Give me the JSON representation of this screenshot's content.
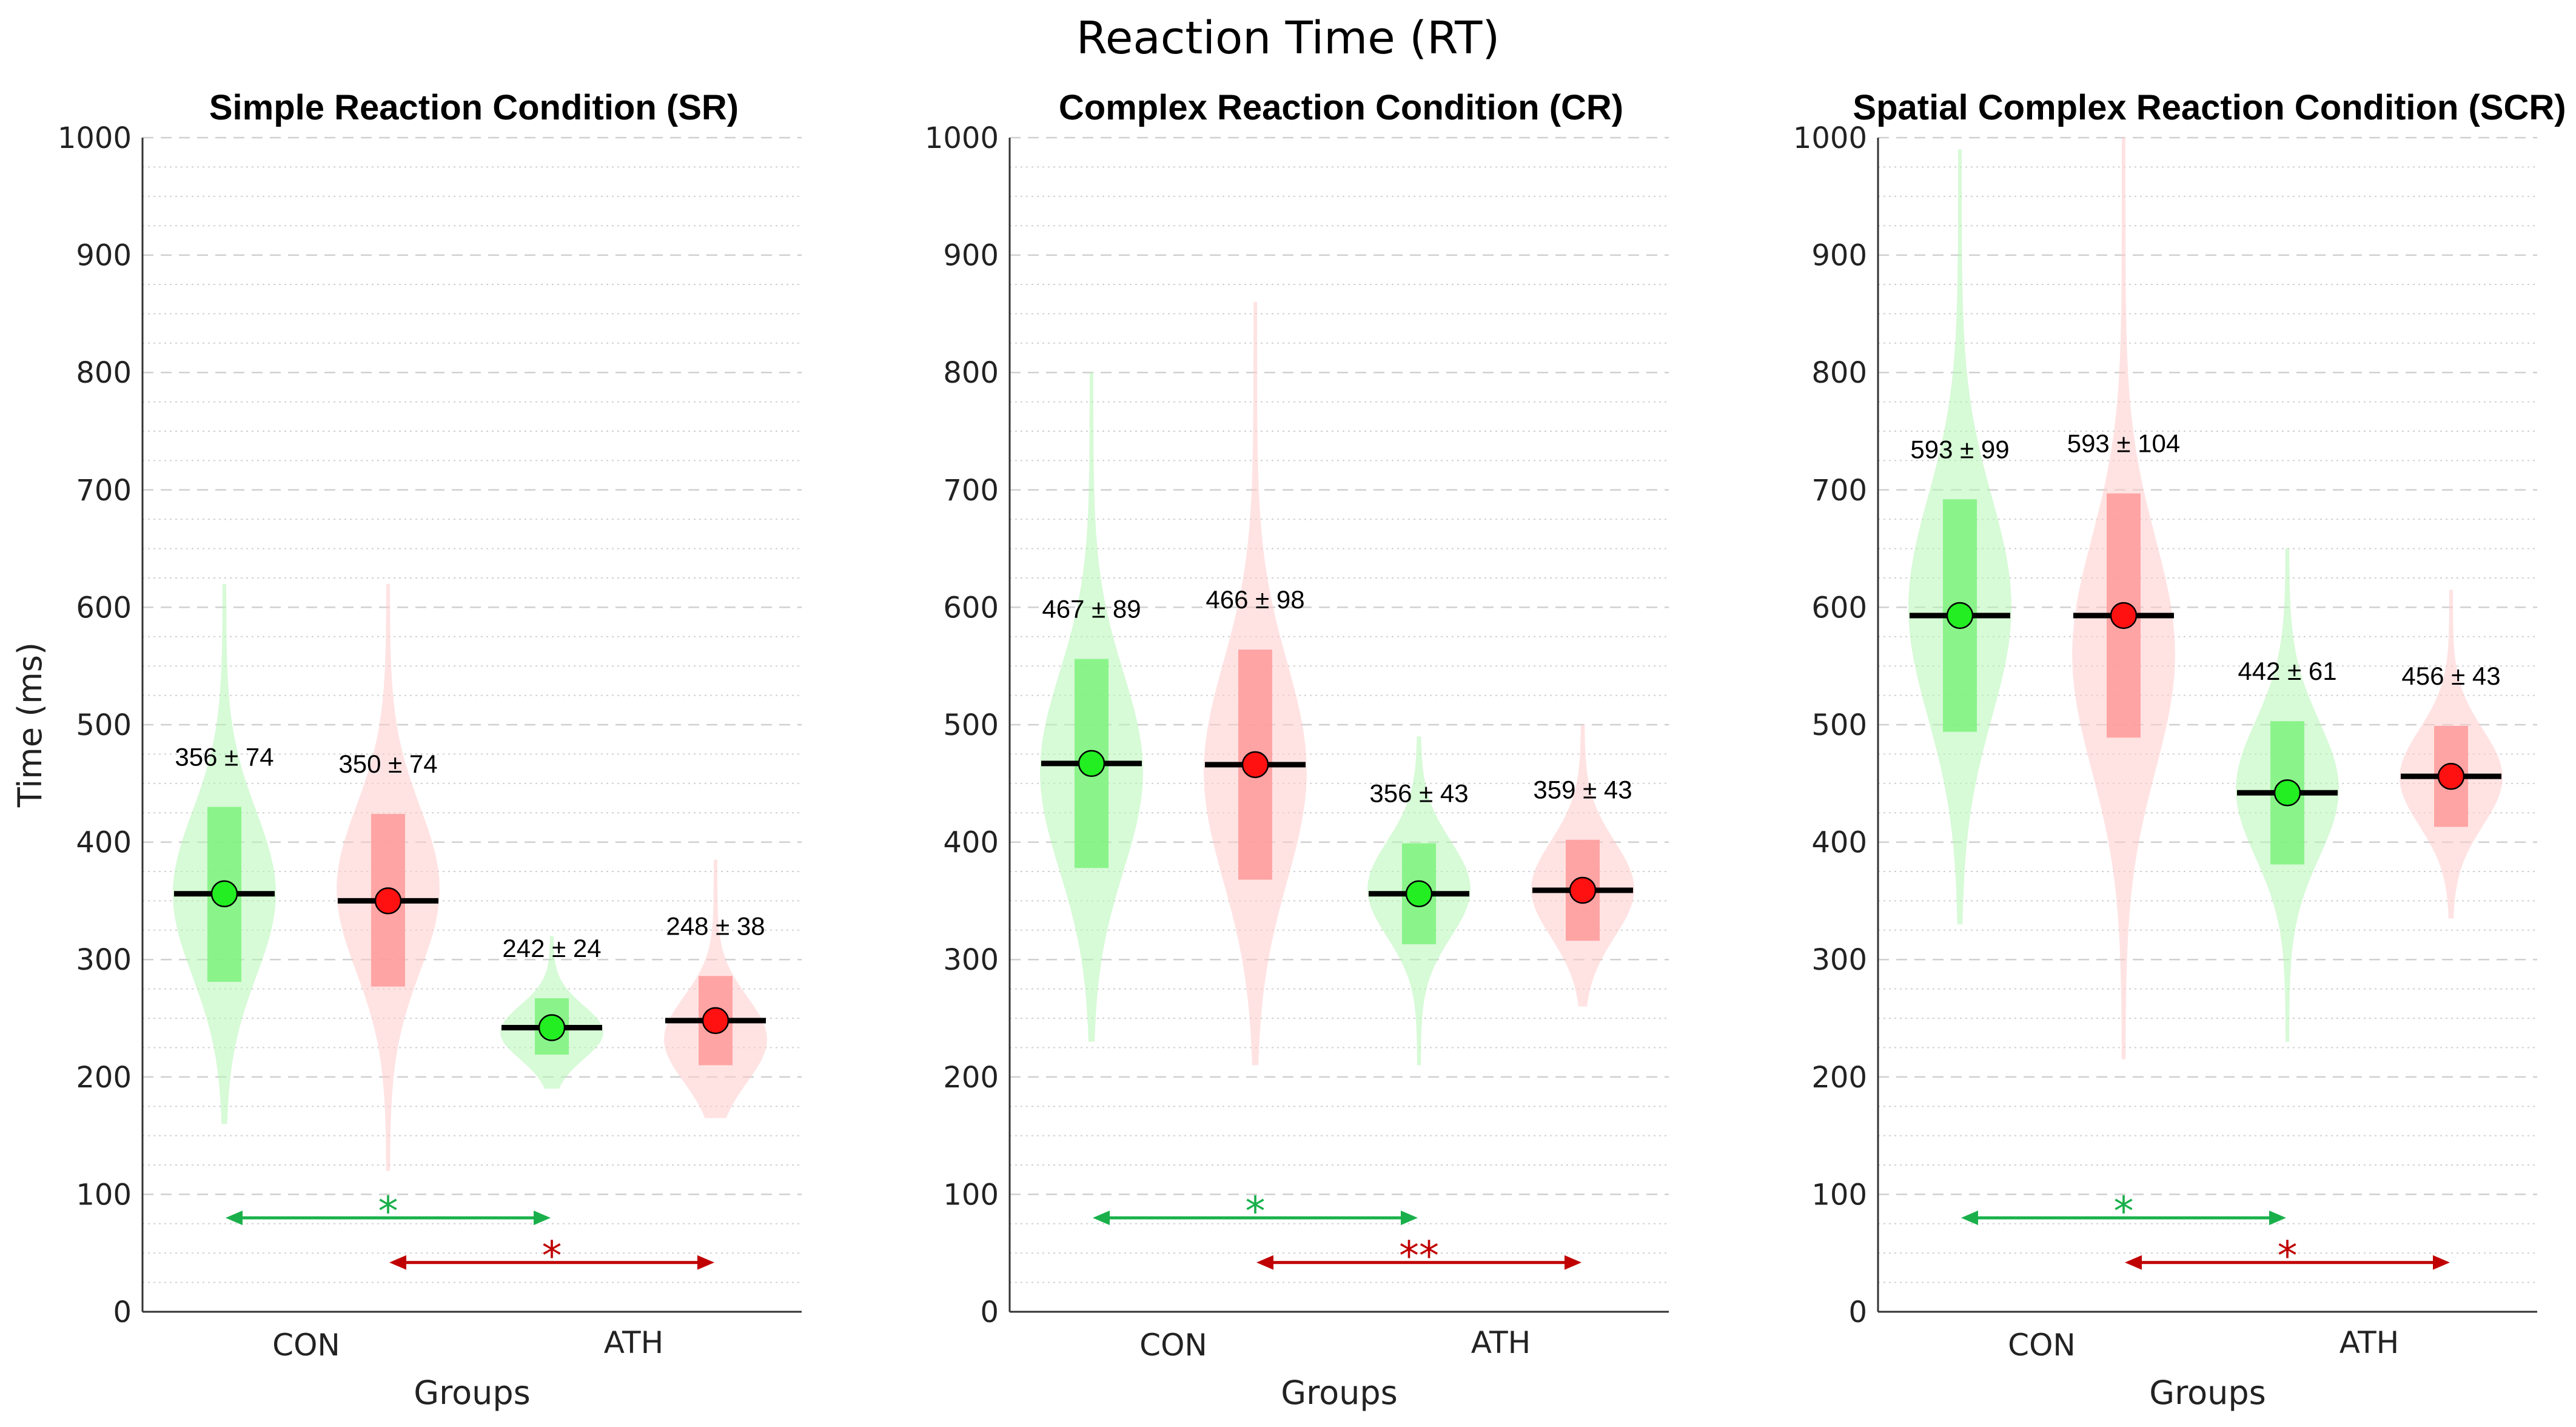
{
  "figure_title": "Reaction Time (RT)",
  "colors": {
    "con_fill": "#b7f5b7",
    "ath_fill": "#ffcccc",
    "con_box": "#7cf27c",
    "ath_box": "#ff9999",
    "con_marker": "#22ee22",
    "ath_marker": "#ff1111",
    "sig_green": "#19b04b",
    "sig_red": "#c00000",
    "median": "#000000",
    "grid": "#d0d0d0"
  },
  "chart_data": [
    {
      "type": "violin",
      "title": "Simple Reaction Condition (SR)",
      "xlabel": "Groups",
      "ylabel": "Time (ms)",
      "ylim": [
        0,
        1000
      ],
      "yticks": [
        0,
        100,
        200,
        300,
        400,
        500,
        600,
        700,
        800,
        900,
        1000
      ],
      "categories": [
        "CON",
        "ATH"
      ],
      "series": [
        {
          "group": "CON",
          "condition": "green",
          "mean": 356,
          "sd": 74,
          "label": "356 ± 74",
          "box": [
            281,
            430
          ],
          "violin_min": 160,
          "violin_max": 620,
          "mode": 356
        },
        {
          "group": "CON",
          "condition": "red",
          "mean": 350,
          "sd": 74,
          "label": "350 ± 74",
          "box": [
            277,
            424
          ],
          "violin_min": 120,
          "violin_max": 620,
          "mode": 360
        },
        {
          "group": "ATH",
          "condition": "green",
          "mean": 242,
          "sd": 24,
          "label": "242 ± 24",
          "box": [
            219,
            267
          ],
          "violin_min": 190,
          "violin_max": 320,
          "mode": 238
        },
        {
          "group": "ATH",
          "condition": "red",
          "mean": 248,
          "sd": 38,
          "label": "248 ± 38",
          "box": [
            210,
            286
          ],
          "violin_min": 165,
          "violin_max": 385,
          "mode": 232
        }
      ],
      "significance": [
        {
          "from": 0,
          "to": 2,
          "y": 80,
          "label": "*",
          "color": "green"
        },
        {
          "from": 1,
          "to": 3,
          "y": 42,
          "label": "*",
          "color": "red"
        }
      ]
    },
    {
      "type": "violin",
      "title": "Complex Reaction Condition (CR)",
      "xlabel": "Groups",
      "ylabel": "",
      "ylim": [
        0,
        1000
      ],
      "yticks": [
        0,
        100,
        200,
        300,
        400,
        500,
        600,
        700,
        800,
        900,
        1000
      ],
      "categories": [
        "CON",
        "ATH"
      ],
      "series": [
        {
          "group": "CON",
          "condition": "green",
          "mean": 467,
          "sd": 89,
          "label": "467 ± 89",
          "box": [
            378,
            556
          ],
          "violin_min": 230,
          "violin_max": 800,
          "mode": 460
        },
        {
          "group": "CON",
          "condition": "red",
          "mean": 466,
          "sd": 98,
          "label": "466 ± 98",
          "box": [
            368,
            564
          ],
          "violin_min": 210,
          "violin_max": 860,
          "mode": 460
        },
        {
          "group": "ATH",
          "condition": "green",
          "mean": 356,
          "sd": 43,
          "label": "356 ± 43",
          "box": [
            313,
            399
          ],
          "violin_min": 210,
          "violin_max": 490,
          "mode": 360
        },
        {
          "group": "ATH",
          "condition": "red",
          "mean": 359,
          "sd": 43,
          "label": "359 ± 43",
          "box": [
            316,
            402
          ],
          "violin_min": 260,
          "violin_max": 500,
          "mode": 360
        }
      ],
      "significance": [
        {
          "from": 0,
          "to": 2,
          "y": 80,
          "label": "*",
          "color": "green"
        },
        {
          "from": 1,
          "to": 3,
          "y": 42,
          "label": "**",
          "color": "red"
        }
      ]
    },
    {
      "type": "violin",
      "title": "Spatial Complex Reaction Condition (SCR)",
      "xlabel": "Groups",
      "ylabel": "",
      "ylim": [
        0,
        1000
      ],
      "yticks": [
        0,
        100,
        200,
        300,
        400,
        500,
        600,
        700,
        800,
        900,
        1000
      ],
      "categories": [
        "CON",
        "ATH"
      ],
      "series": [
        {
          "group": "CON",
          "condition": "green",
          "mean": 593,
          "sd": 99,
          "label": "593 ± 99",
          "box": [
            494,
            692
          ],
          "violin_min": 330,
          "violin_max": 990,
          "mode": 600
        },
        {
          "group": "CON",
          "condition": "red",
          "mean": 593,
          "sd": 104,
          "label": "593 ± 104",
          "box": [
            489,
            697
          ],
          "violin_min": 215,
          "violin_max": 1000,
          "mode": 560
        },
        {
          "group": "ATH",
          "condition": "green",
          "mean": 442,
          "sd": 61,
          "label": "442 ± 61",
          "box": [
            381,
            503
          ],
          "violin_min": 230,
          "violin_max": 650,
          "mode": 445
        },
        {
          "group": "ATH",
          "condition": "red",
          "mean": 456,
          "sd": 43,
          "label": "456 ± 43",
          "box": [
            413,
            499
          ],
          "violin_min": 335,
          "violin_max": 615,
          "mode": 455
        }
      ],
      "significance": [
        {
          "from": 0,
          "to": 2,
          "y": 80,
          "label": "*",
          "color": "green"
        },
        {
          "from": 1,
          "to": 3,
          "y": 42,
          "label": "*",
          "color": "red"
        }
      ]
    }
  ]
}
